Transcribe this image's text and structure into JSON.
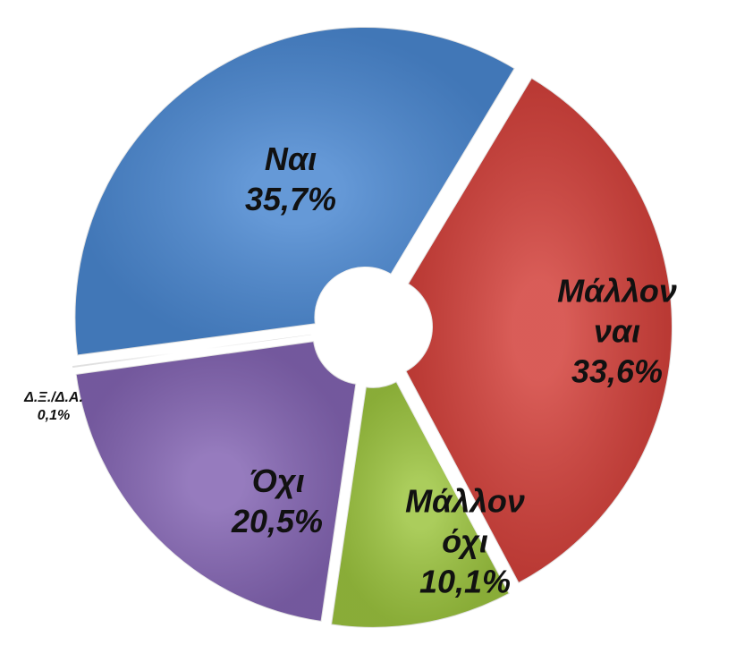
{
  "chart_data": {
    "type": "pie",
    "donut": true,
    "categories": [
      "Μάλλον ναι",
      "Μάλλον όχι",
      "Όχι",
      "Δ.Ξ./Δ.Α.",
      "Ναι"
    ],
    "values": [
      33.6,
      10.1,
      20.5,
      0.1,
      35.7
    ],
    "value_labels": [
      "33,6%",
      "10,1%",
      "20,5%",
      "0,1%",
      "35,7%"
    ],
    "colors": [
      "#d2403a",
      "#9cc43f",
      "#8364b2",
      "#dddddd",
      "#4a87d0"
    ]
  }
}
